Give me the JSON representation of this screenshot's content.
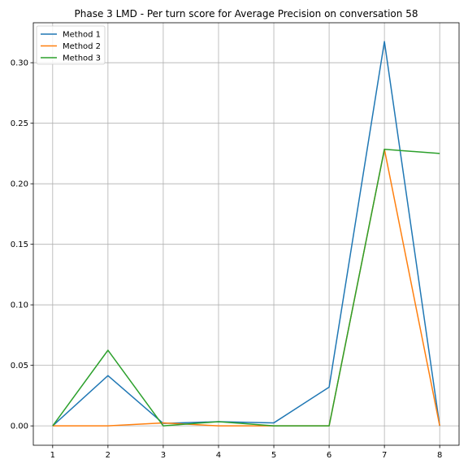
{
  "chart_data": {
    "type": "line",
    "title": "Phase 3 LMD - Per turn score for Average Precision on conversation 58",
    "xlabel": "",
    "ylabel": "",
    "x": [
      1,
      2,
      3,
      4,
      5,
      6,
      7,
      8
    ],
    "xlim": [
      0.65,
      8.35
    ],
    "ylim": [
      -0.016,
      0.333
    ],
    "xticks": [
      1,
      2,
      3,
      4,
      5,
      6,
      7,
      8
    ],
    "yticks": [
      0.0,
      0.05,
      0.1,
      0.15,
      0.2,
      0.25,
      0.3
    ],
    "ytick_labels": [
      "0.00",
      "0.05",
      "0.10",
      "0.15",
      "0.20",
      "0.25",
      "0.30"
    ],
    "grid": true,
    "legend_position": "top-left",
    "series": [
      {
        "name": "Method 1",
        "color": "#1f77b4",
        "values": [
          0.0,
          0.0415,
          0.002,
          0.0035,
          0.0025,
          0.032,
          0.3175,
          0.0
        ]
      },
      {
        "name": "Method 2",
        "color": "#ff7f0e",
        "values": [
          0.0,
          0.0,
          0.0025,
          0.0,
          0.0,
          0.0,
          0.2285,
          0.0
        ]
      },
      {
        "name": "Method 3",
        "color": "#2ca02c",
        "values": [
          0.0,
          0.0625,
          0.0,
          0.0035,
          0.0,
          0.0,
          0.2285,
          0.225
        ]
      }
    ]
  }
}
